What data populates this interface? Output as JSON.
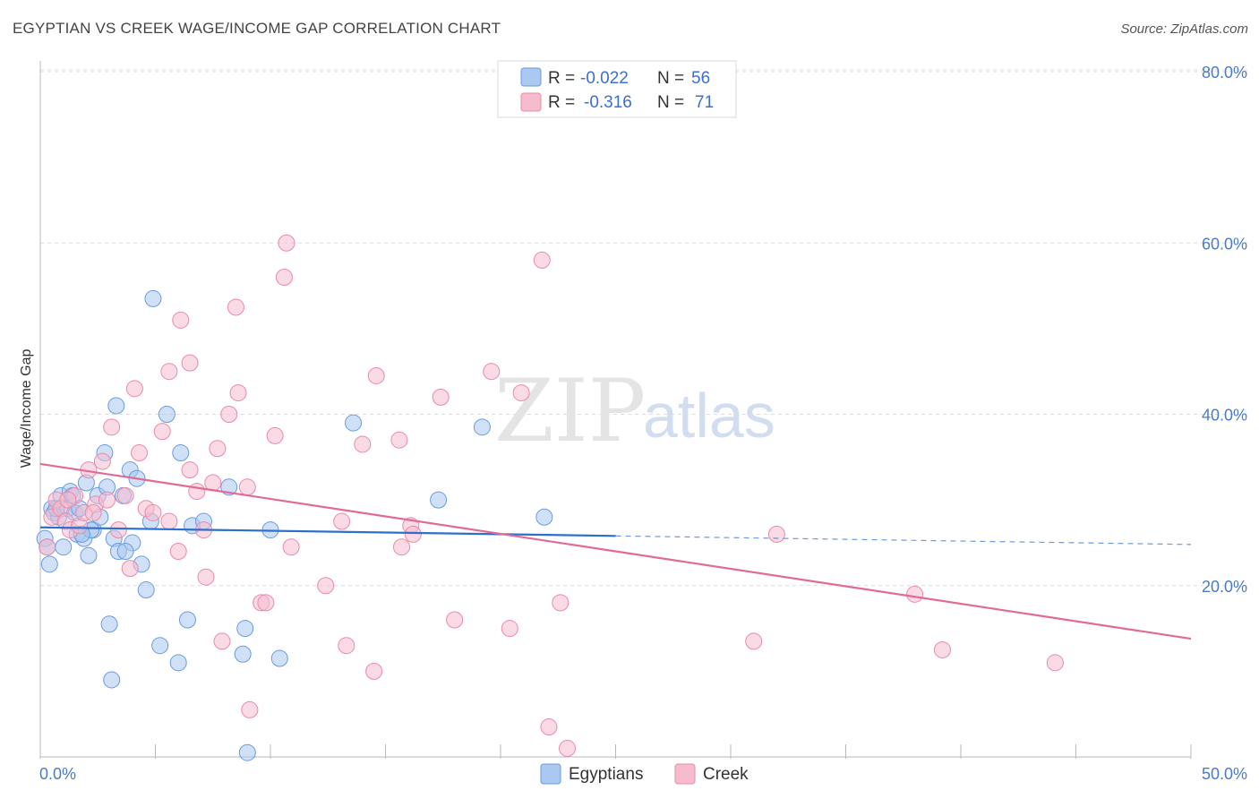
{
  "title": "EGYPTIAN VS CREEK WAGE/INCOME GAP CORRELATION CHART",
  "source": "Source: ZipAtlas.com",
  "colors": {
    "egyptians_fill": "#aac8f0",
    "egyptians_stroke": "#6a9ae0",
    "egyptians_line": "#2d6fcc",
    "creek_fill": "#f6bccd",
    "creek_stroke": "#e98aa8",
    "creek_line": "#e06b96",
    "tick_label": "#4a7cc4"
  },
  "legend": {
    "r_label": "R =",
    "n_label": "N =",
    "rows": [
      {
        "series": "Egyptians",
        "r": "-0.022",
        "n": "56"
      },
      {
        "series": "Creek",
        "r": "-0.316",
        "n": "71"
      }
    ]
  },
  "watermark": {
    "zip": "ZIP",
    "atlas": "atlas"
  },
  "chart_data": {
    "type": "scatter",
    "title": "EGYPTIAN VS CREEK WAGE/INCOME GAP CORRELATION CHART",
    "xlabel": "",
    "ylabel": "Wage/Income Gap",
    "xlim": [
      0,
      50
    ],
    "ylim": [
      0,
      80
    ],
    "x_tick_labels": [
      "0.0%",
      "50.0%"
    ],
    "y_ticks": [
      20,
      40,
      60,
      80
    ],
    "y_tick_labels": [
      "20.0%",
      "40.0%",
      "60.0%",
      "80.0%"
    ],
    "grid": true,
    "legend_position": "top-center",
    "series": [
      {
        "name": "Egyptians",
        "r": -0.022,
        "n": 56,
        "trend": {
          "x0": 0,
          "y0": 26.8,
          "x1": 25,
          "y1": 25.8,
          "dashed_to_x": 50,
          "dashed_to_y": 24.8
        },
        "points": [
          [
            0.2,
            25.5
          ],
          [
            0.3,
            24.5
          ],
          [
            0.4,
            22.5
          ],
          [
            0.5,
            29.0
          ],
          [
            0.6,
            28.5
          ],
          [
            0.8,
            28.0
          ],
          [
            0.9,
            30.5
          ],
          [
            1.0,
            24.5
          ],
          [
            1.2,
            29.0
          ],
          [
            1.3,
            31.0
          ],
          [
            1.5,
            28.5
          ],
          [
            1.6,
            26.0
          ],
          [
            1.7,
            29.0
          ],
          [
            1.9,
            25.5
          ],
          [
            2.0,
            32.0
          ],
          [
            2.1,
            23.5
          ],
          [
            2.3,
            26.5
          ],
          [
            2.5,
            30.5
          ],
          [
            2.6,
            28.0
          ],
          [
            2.8,
            35.5
          ],
          [
            2.9,
            31.5
          ],
          [
            3.2,
            25.5
          ],
          [
            3.3,
            41.0
          ],
          [
            3.4,
            24.0
          ],
          [
            3.6,
            30.5
          ],
          [
            3.9,
            33.5
          ],
          [
            4.0,
            25.0
          ],
          [
            4.2,
            32.5
          ],
          [
            4.4,
            22.5
          ],
          [
            4.8,
            27.5
          ],
          [
            4.9,
            53.5
          ],
          [
            5.2,
            13.0
          ],
          [
            5.5,
            40.0
          ],
          [
            6.1,
            35.5
          ],
          [
            6.4,
            16.0
          ],
          [
            6.6,
            27.0
          ],
          [
            7.1,
            27.5
          ],
          [
            8.2,
            31.5
          ],
          [
            8.8,
            12.0
          ],
          [
            8.9,
            15.0
          ],
          [
            9.0,
            0.5
          ],
          [
            10.0,
            26.5
          ],
          [
            10.4,
            11.5
          ],
          [
            13.6,
            39.0
          ],
          [
            17.3,
            30.0
          ],
          [
            19.2,
            38.5
          ],
          [
            21.9,
            28.0
          ],
          [
            3.0,
            15.5
          ],
          [
            3.1,
            9.0
          ],
          [
            6.0,
            11.0
          ],
          [
            1.4,
            30.5
          ],
          [
            0.7,
            29.0
          ],
          [
            2.2,
            26.5
          ],
          [
            1.8,
            26.0
          ],
          [
            3.7,
            24.0
          ],
          [
            4.6,
            19.5
          ]
        ]
      },
      {
        "name": "Creek",
        "r": -0.316,
        "n": 71,
        "trend": {
          "x0": 0,
          "y0": 34.2,
          "x1": 50,
          "y1": 13.8
        },
        "points": [
          [
            0.3,
            24.5
          ],
          [
            0.5,
            28.0
          ],
          [
            0.7,
            30.0
          ],
          [
            0.9,
            29.0
          ],
          [
            1.1,
            27.5
          ],
          [
            1.3,
            26.5
          ],
          [
            1.5,
            30.5
          ],
          [
            1.7,
            27.0
          ],
          [
            1.9,
            28.5
          ],
          [
            2.1,
            33.5
          ],
          [
            2.4,
            29.5
          ],
          [
            2.7,
            34.5
          ],
          [
            2.9,
            30.0
          ],
          [
            3.1,
            38.5
          ],
          [
            3.4,
            26.5
          ],
          [
            3.7,
            30.5
          ],
          [
            3.9,
            22.0
          ],
          [
            4.1,
            43.0
          ],
          [
            4.3,
            35.5
          ],
          [
            4.6,
            29.0
          ],
          [
            4.9,
            28.5
          ],
          [
            5.3,
            38.0
          ],
          [
            5.6,
            45.0
          ],
          [
            5.6,
            27.5
          ],
          [
            6.0,
            24.0
          ],
          [
            6.1,
            51.0
          ],
          [
            6.5,
            46.0
          ],
          [
            6.5,
            33.5
          ],
          [
            6.8,
            31.0
          ],
          [
            7.1,
            26.5
          ],
          [
            7.2,
            21.0
          ],
          [
            7.5,
            32.0
          ],
          [
            7.7,
            36.0
          ],
          [
            7.9,
            13.5
          ],
          [
            8.2,
            40.0
          ],
          [
            8.5,
            52.5
          ],
          [
            8.6,
            42.5
          ],
          [
            9.0,
            31.5
          ],
          [
            9.1,
            5.5
          ],
          [
            9.6,
            18.0
          ],
          [
            9.8,
            18.0
          ],
          [
            10.2,
            37.5
          ],
          [
            10.6,
            56.0
          ],
          [
            10.7,
            60.0
          ],
          [
            10.9,
            24.5
          ],
          [
            12.4,
            20.0
          ],
          [
            13.1,
            27.5
          ],
          [
            13.3,
            13.0
          ],
          [
            14.0,
            36.5
          ],
          [
            14.5,
            10.0
          ],
          [
            14.6,
            44.5
          ],
          [
            15.6,
            37.0
          ],
          [
            15.7,
            24.5
          ],
          [
            16.1,
            27.0
          ],
          [
            16.2,
            26.0
          ],
          [
            17.4,
            42.0
          ],
          [
            18.0,
            16.0
          ],
          [
            19.6,
            45.0
          ],
          [
            20.4,
            15.0
          ],
          [
            20.9,
            42.5
          ],
          [
            21.8,
            58.0
          ],
          [
            22.1,
            3.5
          ],
          [
            22.6,
            18.0
          ],
          [
            22.9,
            1.0
          ],
          [
            31.0,
            13.5
          ],
          [
            32.0,
            26.0
          ],
          [
            38.0,
            19.0
          ],
          [
            39.2,
            12.5
          ],
          [
            44.1,
            11.0
          ],
          [
            2.3,
            28.5
          ],
          [
            1.2,
            30.0
          ]
        ]
      }
    ]
  }
}
